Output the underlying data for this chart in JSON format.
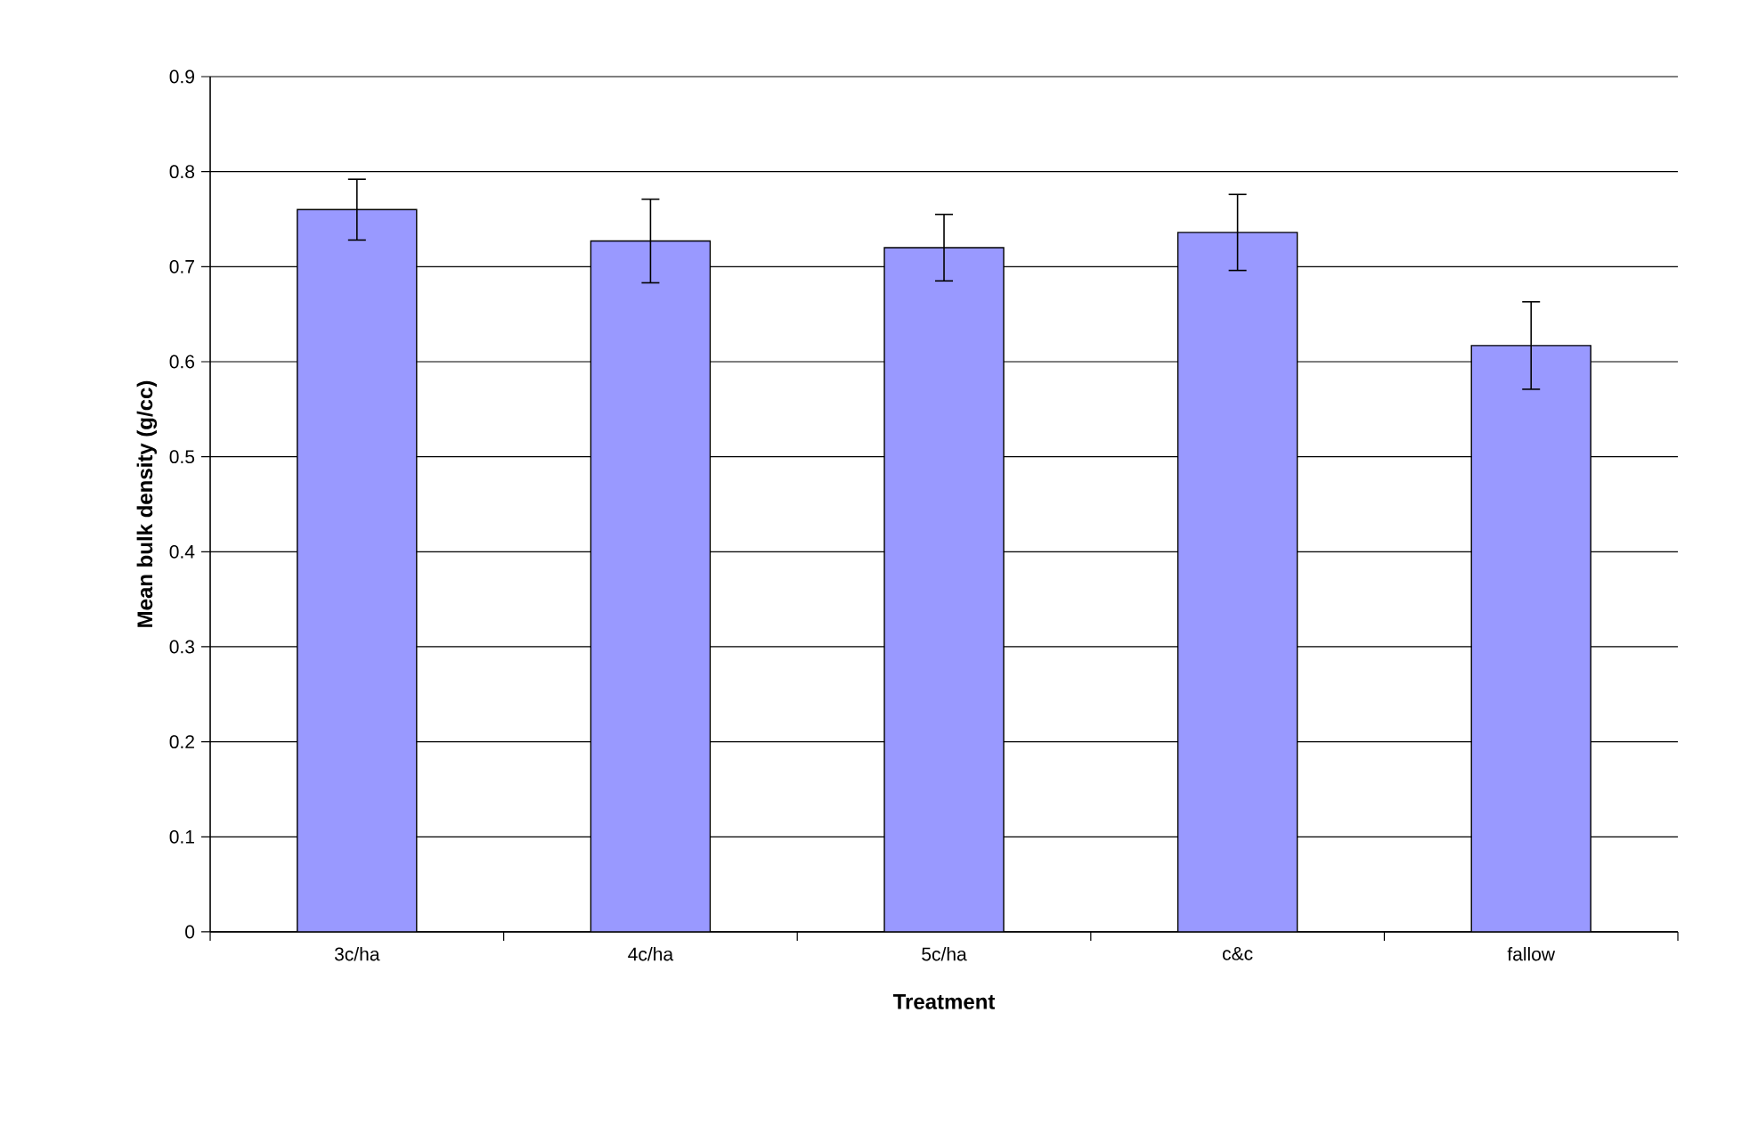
{
  "chart_data": {
    "type": "bar",
    "xlabel": "Treatment",
    "ylabel": "Mean bulk density (g/cc)",
    "categories": [
      "3c/ha",
      "4c/ha",
      "5c/ha",
      "c&c",
      "fallow"
    ],
    "values": [
      0.76,
      0.727,
      0.72,
      0.736,
      0.617
    ],
    "errors": [
      0.032,
      0.044,
      0.035,
      0.04,
      0.046
    ],
    "color": "#9999ff",
    "ylim": [
      0,
      0.9
    ],
    "yticks": [
      0,
      0.1,
      0.2,
      0.3,
      0.4,
      0.5,
      0.6,
      0.7,
      0.8,
      0.9
    ],
    "grid": "y"
  }
}
